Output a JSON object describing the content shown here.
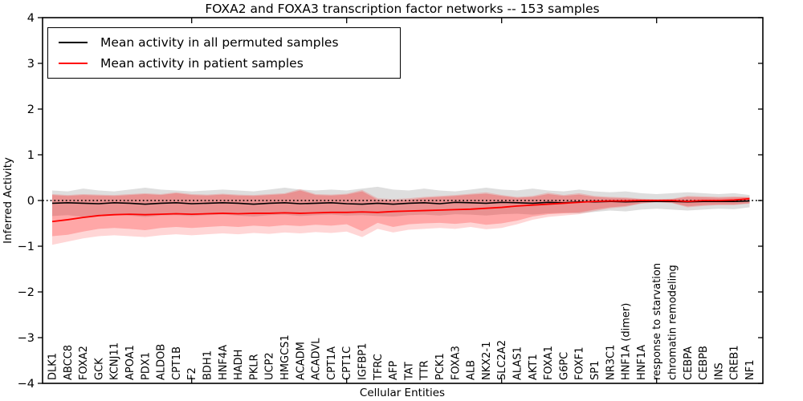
{
  "title": "FOXA2 and FOXA3 transcription factor networks -- 153 samples",
  "legend": {
    "items": [
      {
        "label": "Mean activity in all permuted samples",
        "color": "#000000"
      },
      {
        "label": "Mean activity in patient samples",
        "color": "#ff0000"
      }
    ]
  },
  "colors": {
    "permuted_line": "#000000",
    "patient_line": "#ff0000",
    "permuted_band": "rgba(0,0,0,0.13)",
    "patient_band_outer": "rgba(255,0,0,0.16)",
    "patient_band_inner": "rgba(255,0,0,0.22)",
    "zero_line": "#000000"
  },
  "chart_data": {
    "type": "line",
    "title": "FOXA2 and FOXA3 transcription factor networks -- 153 samples",
    "xlabel": "Cellular Entities",
    "ylabel": "Inferred Activity",
    "ylim": [
      -4,
      4
    ],
    "yticks": [
      4,
      3,
      2,
      1,
      0,
      -1,
      -2,
      -3,
      -4
    ],
    "ytick_labels": [
      "4",
      "3",
      "2",
      "1",
      "0",
      "−1",
      "−2",
      "−3",
      "−4"
    ],
    "xticks": [
      10,
      20,
      30,
      40
    ],
    "grid": false,
    "legend_position": "upper left",
    "zero_line": 0,
    "categories": [
      "DLK1",
      "ABCC8",
      "FOXA2",
      "GCK",
      "KCNJ11",
      "APOA1",
      "PDX1",
      "ALDOB",
      "CPT1B",
      "F2",
      "BDH1",
      "HNF4A",
      "HADH",
      "PKLR",
      "UCP2",
      "HMGCS1",
      "ACADM",
      "ACADVL",
      "CPT1A",
      "CPT1C",
      "IGFBP1",
      "TFRC",
      "AFP",
      "TAT",
      "TTR",
      "PCK1",
      "FOXA3",
      "ALB",
      "NKX2-1",
      "SLC2A2",
      "ALAS1",
      "AKT1",
      "FOXA1",
      "G6PC",
      "FOXF1",
      "SP1",
      "NR3C1",
      "HNF1A (dimer)",
      "HNF1A",
      "response to starvation",
      "chromatin remodeling",
      "CEBPA",
      "CEBPB",
      "INS",
      "CREB1",
      "NF1"
    ],
    "series": [
      {
        "name": "Mean activity in all permuted samples",
        "color": "#000000",
        "values": [
          -0.06,
          -0.05,
          -0.06,
          -0.07,
          -0.05,
          -0.06,
          -0.08,
          -0.06,
          -0.05,
          -0.07,
          -0.06,
          -0.05,
          -0.06,
          -0.08,
          -0.06,
          -0.05,
          -0.07,
          -0.06,
          -0.05,
          -0.07,
          -0.08,
          -0.06,
          -0.08,
          -0.06,
          -0.05,
          -0.07,
          -0.04,
          -0.05,
          -0.06,
          -0.04,
          -0.05,
          -0.06,
          -0.04,
          -0.05,
          -0.03,
          -0.03,
          -0.02,
          -0.03,
          -0.02,
          -0.02,
          -0.02,
          -0.03,
          -0.02,
          -0.02,
          -0.02,
          -0.01
        ]
      },
      {
        "name": "Mean activity in patient samples",
        "color": "#ff0000",
        "values": [
          -0.46,
          -0.42,
          -0.37,
          -0.33,
          -0.31,
          -0.3,
          -0.31,
          -0.3,
          -0.29,
          -0.3,
          -0.29,
          -0.28,
          -0.29,
          -0.28,
          -0.28,
          -0.27,
          -0.28,
          -0.27,
          -0.26,
          -0.26,
          -0.25,
          -0.26,
          -0.24,
          -0.23,
          -0.22,
          -0.21,
          -0.2,
          -0.19,
          -0.17,
          -0.15,
          -0.12,
          -0.1,
          -0.08,
          -0.06,
          -0.04,
          -0.02,
          -0.01,
          -0.01,
          0.0,
          0.0,
          0.0,
          -0.02,
          0.0,
          0.0,
          0.01,
          0.04
        ]
      }
    ],
    "bands": [
      {
        "name": "permuted-range",
        "color": "rgba(0,0,0,0.13)",
        "hi": [
          0.22,
          0.2,
          0.26,
          0.22,
          0.2,
          0.24,
          0.28,
          0.24,
          0.22,
          0.2,
          0.22,
          0.24,
          0.22,
          0.2,
          0.24,
          0.28,
          0.24,
          0.22,
          0.24,
          0.22,
          0.26,
          0.3,
          0.24,
          0.22,
          0.26,
          0.22,
          0.2,
          0.24,
          0.28,
          0.24,
          0.22,
          0.26,
          0.22,
          0.2,
          0.24,
          0.2,
          0.18,
          0.2,
          0.16,
          0.14,
          0.16,
          0.18,
          0.16,
          0.14,
          0.16,
          0.12
        ],
        "lo": [
          -0.34,
          -0.32,
          -0.36,
          -0.34,
          -0.31,
          -0.33,
          -0.36,
          -0.33,
          -0.32,
          -0.34,
          -0.32,
          -0.31,
          -0.33,
          -0.35,
          -0.32,
          -0.31,
          -0.34,
          -0.32,
          -0.31,
          -0.33,
          -0.32,
          -0.34,
          -0.35,
          -0.32,
          -0.31,
          -0.33,
          -0.3,
          -0.31,
          -0.33,
          -0.3,
          -0.29,
          -0.31,
          -0.28,
          -0.27,
          -0.28,
          -0.25,
          -0.22,
          -0.24,
          -0.2,
          -0.18,
          -0.2,
          -0.22,
          -0.2,
          -0.18,
          -0.19,
          -0.15
        ]
      },
      {
        "name": "patient-range-outer",
        "color": "rgba(255,0,0,0.16)",
        "hi": [
          0.14,
          0.12,
          0.14,
          0.13,
          0.12,
          0.14,
          0.16,
          0.14,
          0.18,
          0.14,
          0.13,
          0.15,
          0.13,
          0.12,
          0.14,
          0.16,
          0.25,
          0.14,
          0.13,
          0.15,
          0.23,
          0.05,
          0.03,
          0.05,
          0.08,
          0.1,
          0.12,
          0.15,
          0.18,
          0.12,
          0.08,
          0.1,
          0.17,
          0.12,
          0.16,
          0.1,
          0.08,
          0.07,
          0.04,
          0.03,
          0.04,
          0.1,
          0.09,
          0.08,
          0.09,
          0.08
        ],
        "lo": [
          -0.97,
          -0.9,
          -0.83,
          -0.78,
          -0.76,
          -0.78,
          -0.8,
          -0.76,
          -0.74,
          -0.76,
          -0.74,
          -0.72,
          -0.74,
          -0.71,
          -0.73,
          -0.7,
          -0.72,
          -0.69,
          -0.71,
          -0.68,
          -0.8,
          -0.62,
          -0.7,
          -0.64,
          -0.62,
          -0.6,
          -0.62,
          -0.58,
          -0.63,
          -0.6,
          -0.52,
          -0.42,
          -0.36,
          -0.33,
          -0.3,
          -0.23,
          -0.17,
          -0.14,
          -0.07,
          -0.04,
          -0.06,
          -0.15,
          -0.12,
          -0.1,
          -0.1,
          -0.07
        ]
      },
      {
        "name": "patient-range-inner",
        "color": "rgba(255,0,0,0.22)",
        "hi": [
          0.12,
          0.1,
          0.12,
          0.11,
          0.1,
          0.12,
          0.14,
          0.12,
          0.16,
          0.12,
          0.11,
          0.13,
          0.11,
          0.1,
          0.12,
          0.14,
          0.22,
          0.12,
          0.11,
          0.13,
          0.2,
          0.02,
          0.0,
          0.02,
          0.06,
          0.08,
          0.1,
          0.13,
          0.15,
          0.1,
          0.06,
          0.08,
          0.14,
          0.1,
          0.13,
          0.08,
          0.06,
          0.05,
          0.03,
          0.02,
          0.03,
          0.08,
          0.07,
          0.06,
          0.07,
          0.07
        ],
        "lo": [
          -0.78,
          -0.75,
          -0.68,
          -0.62,
          -0.6,
          -0.62,
          -0.65,
          -0.6,
          -0.58,
          -0.6,
          -0.58,
          -0.56,
          -0.58,
          -0.55,
          -0.57,
          -0.54,
          -0.56,
          -0.53,
          -0.55,
          -0.52,
          -0.67,
          -0.49,
          -0.58,
          -0.52,
          -0.5,
          -0.49,
          -0.51,
          -0.48,
          -0.53,
          -0.5,
          -0.44,
          -0.35,
          -0.3,
          -0.28,
          -0.26,
          -0.2,
          -0.15,
          -0.12,
          -0.06,
          -0.03,
          -0.05,
          -0.13,
          -0.1,
          -0.09,
          -0.09,
          -0.06
        ]
      }
    ]
  }
}
